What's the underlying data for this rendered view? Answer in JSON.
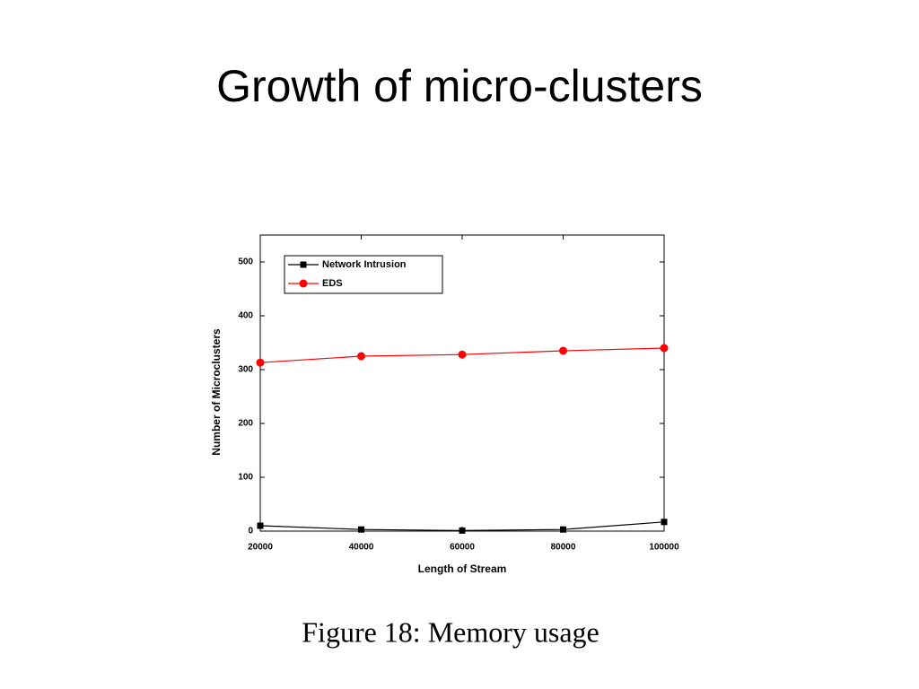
{
  "chart_data": {
    "type": "line",
    "title": "Growth of micro-clusters",
    "caption": "Figure 18:  Memory usage",
    "x_label": "Length of Stream",
    "y_label": "Number of Microclusters",
    "x": [
      20000,
      40000,
      60000,
      80000,
      100000
    ],
    "series": [
      {
        "name": "Network Intrusion",
        "color": "#000000",
        "marker": "square",
        "values": [
          10,
          3,
          1,
          3,
          17
        ]
      },
      {
        "name": "EDS",
        "color": "#ff0000",
        "marker": "circle",
        "values": [
          313,
          325,
          328,
          335,
          340
        ]
      }
    ],
    "xlim": [
      20000,
      100000
    ],
    "xticks": [
      20000,
      40000,
      60000,
      80000,
      100000
    ],
    "ylim": [
      0,
      550
    ],
    "yticks": [
      0,
      100,
      200,
      300,
      400,
      500
    ],
    "grid": false,
    "legend": "upper left"
  }
}
